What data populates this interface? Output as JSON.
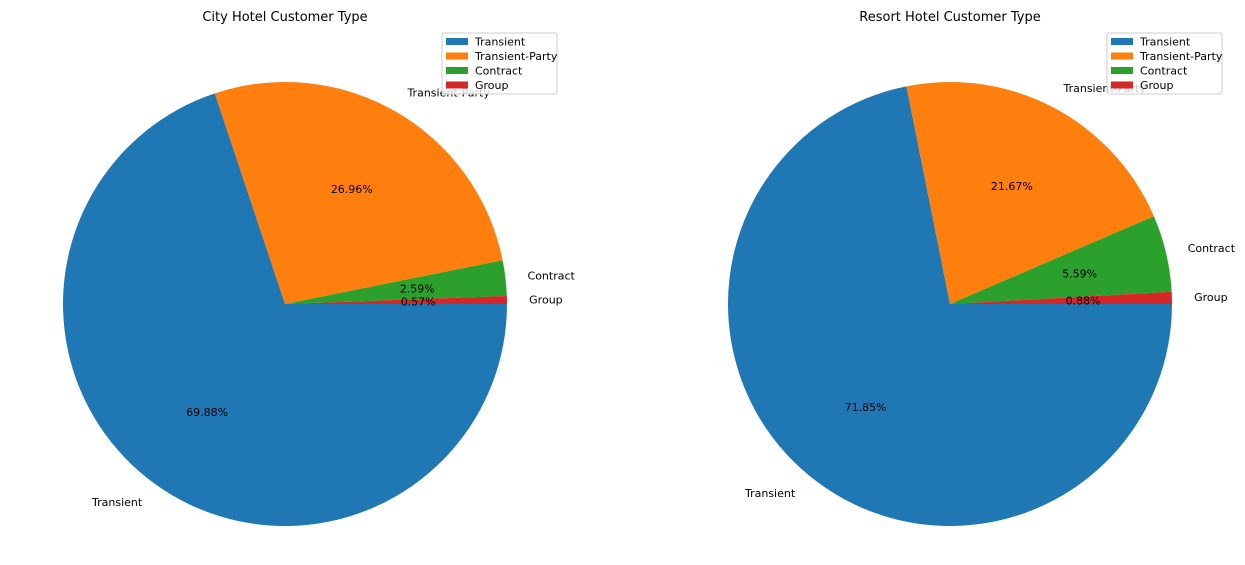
{
  "chart_data": [
    {
      "type": "pie",
      "title": "City Hotel Customer Type",
      "categories": [
        "Transient",
        "Transient-Party",
        "Contract",
        "Group"
      ],
      "values": [
        69.88,
        26.96,
        2.59,
        0.57
      ],
      "value_labels": [
        "69.88%",
        "26.96%",
        "2.59%",
        "0.57%"
      ],
      "colors": [
        "#1f77b4",
        "#ff7f0e",
        "#2ca02c",
        "#d62728"
      ],
      "legend": {
        "placement": "top-right",
        "entries": [
          "Transient",
          "Transient-Party",
          "Contract",
          "Group"
        ]
      }
    },
    {
      "type": "pie",
      "title": "Resort Hotel Customer Type",
      "categories": [
        "Transient",
        "Transient-Party",
        "Contract",
        "Group"
      ],
      "values": [
        71.85,
        21.67,
        5.59,
        0.88
      ],
      "value_labels": [
        "71.85%",
        "21.67%",
        "5.59%",
        "0.88%"
      ],
      "colors": [
        "#1f77b4",
        "#ff7f0e",
        "#2ca02c",
        "#d62728"
      ],
      "legend": {
        "placement": "top-right",
        "entries": [
          "Transient",
          "Transient-Party",
          "Contract",
          "Group"
        ]
      }
    }
  ]
}
